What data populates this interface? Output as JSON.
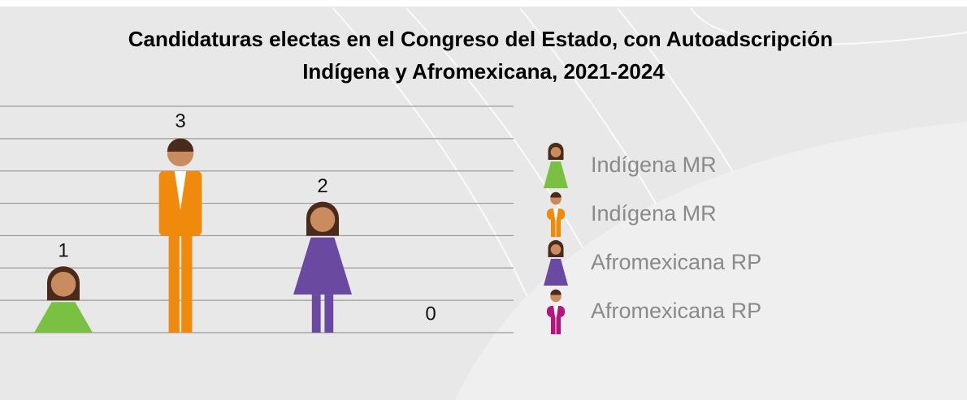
{
  "chart_data": {
    "type": "pictogram",
    "title": "Candidaturas electas en el Congreso del Estado, con Autoadscripción Indígena y Afromexicana, 2021-2024",
    "series": [
      {
        "name": "Indígena MR",
        "color": "#7ac143",
        "icon": "woman",
        "values": [
          1
        ]
      },
      {
        "name": "Indígena MR",
        "color": "#f08a0c",
        "icon": "man",
        "values": [
          3
        ]
      },
      {
        "name": "Afromexicana RP",
        "color": "#6a4aa0",
        "icon": "woman",
        "values": [
          2
        ]
      },
      {
        "name": "Afromexicana RP",
        "color": "#b5167e",
        "icon": "man",
        "values": [
          0
        ]
      }
    ],
    "ylim": [
      0,
      3.5
    ],
    "yticks": [
      0,
      0.5,
      1,
      1.5,
      2,
      2.5,
      3,
      3.5
    ],
    "grid": true
  }
}
